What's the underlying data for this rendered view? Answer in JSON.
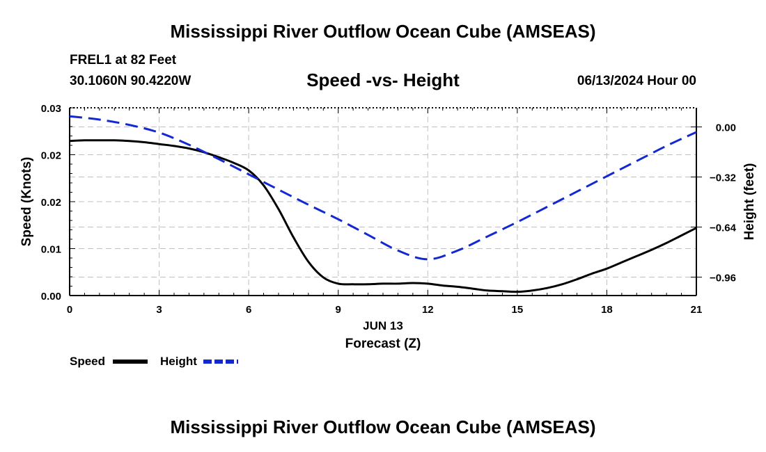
{
  "title": "Mississippi River Outflow Ocean Cube (AMSEAS)",
  "footer_title": "Mississippi River Outflow Ocean Cube (AMSEAS)",
  "station": "FREL1 at 82 Feet",
  "coordinates": "30.1060N  90.4220W",
  "datetime": "06/13/2024 Hour 00",
  "colors": {
    "speed": "#000000",
    "height": "#1428d2",
    "grid": "#c0c0c0"
  },
  "chart_data": {
    "type": "line",
    "title": "Speed -vs- Height",
    "xlabel": "Forecast (Z)",
    "xlabel_date": "JUN 13",
    "ylabel_left": "Speed (Knots)",
    "ylabel_right": "Height (feet)",
    "xlim": [
      0,
      21
    ],
    "ylim_left": [
      0,
      0.03
    ],
    "ylim_right": [
      -1.0776,
      0.1224
    ],
    "x_ticks": [
      "0",
      "3",
      "6",
      "9",
      "12",
      "15",
      "18",
      "21"
    ],
    "x_tick_values": [
      0,
      3,
      6,
      9,
      12,
      15,
      18,
      21
    ],
    "left_ticks": [
      "0.00",
      "0.01",
      "0.02",
      "0.02",
      "0.03"
    ],
    "left_tick_values": [
      0,
      0.0075,
      0.015,
      0.0225,
      0.03
    ],
    "right_ticks": [
      "0.00",
      "−0.32",
      "−0.64",
      "−0.96"
    ],
    "right_tick_values": [
      0,
      -0.32,
      -0.64,
      -0.96
    ],
    "series": [
      {
        "name": "Speed",
        "axis": "left",
        "style": "solid",
        "x": [
          0,
          0.5,
          1,
          1.5,
          2,
          2.5,
          3,
          3.5,
          4,
          4.5,
          5,
          5.5,
          6,
          6.5,
          7,
          7.5,
          8,
          8.5,
          9,
          9.5,
          10,
          10.5,
          11,
          11.5,
          12,
          12.5,
          13,
          13.5,
          14,
          14.5,
          15,
          15.5,
          16,
          16.5,
          17,
          17.5,
          18,
          18.5,
          19,
          19.5,
          20,
          20.5,
          21
        ],
        "values": [
          0.0247,
          0.0248,
          0.0248,
          0.0248,
          0.0247,
          0.0245,
          0.0242,
          0.0239,
          0.0235,
          0.0229,
          0.0221,
          0.0212,
          0.02,
          0.0176,
          0.0138,
          0.0093,
          0.0054,
          0.0029,
          0.0019,
          0.0018,
          0.0018,
          0.0019,
          0.0019,
          0.002,
          0.0019,
          0.0016,
          0.0014,
          0.0011,
          0.0008,
          0.0007,
          0.0006,
          0.0008,
          0.0012,
          0.0018,
          0.0026,
          0.0035,
          0.0043,
          0.0053,
          0.0063,
          0.0073,
          0.0084,
          0.0096,
          0.0108
        ]
      },
      {
        "name": "Height",
        "axis": "right",
        "style": "dashed",
        "x": [
          0,
          1,
          2,
          3,
          4,
          5,
          6,
          7,
          8,
          9,
          10,
          11,
          12,
          13,
          14,
          15,
          16,
          17,
          18,
          19,
          20,
          21
        ],
        "values": [
          0.068,
          0.047,
          0.013,
          -0.036,
          -0.114,
          -0.206,
          -0.303,
          -0.401,
          -0.497,
          -0.59,
          -0.69,
          -0.79,
          -0.846,
          -0.79,
          -0.7,
          -0.608,
          -0.511,
          -0.413,
          -0.315,
          -0.218,
          -0.121,
          -0.033
        ]
      }
    ],
    "legend": [
      "Speed",
      "Height"
    ],
    "legend_position": "bottom-left",
    "grid": true
  }
}
